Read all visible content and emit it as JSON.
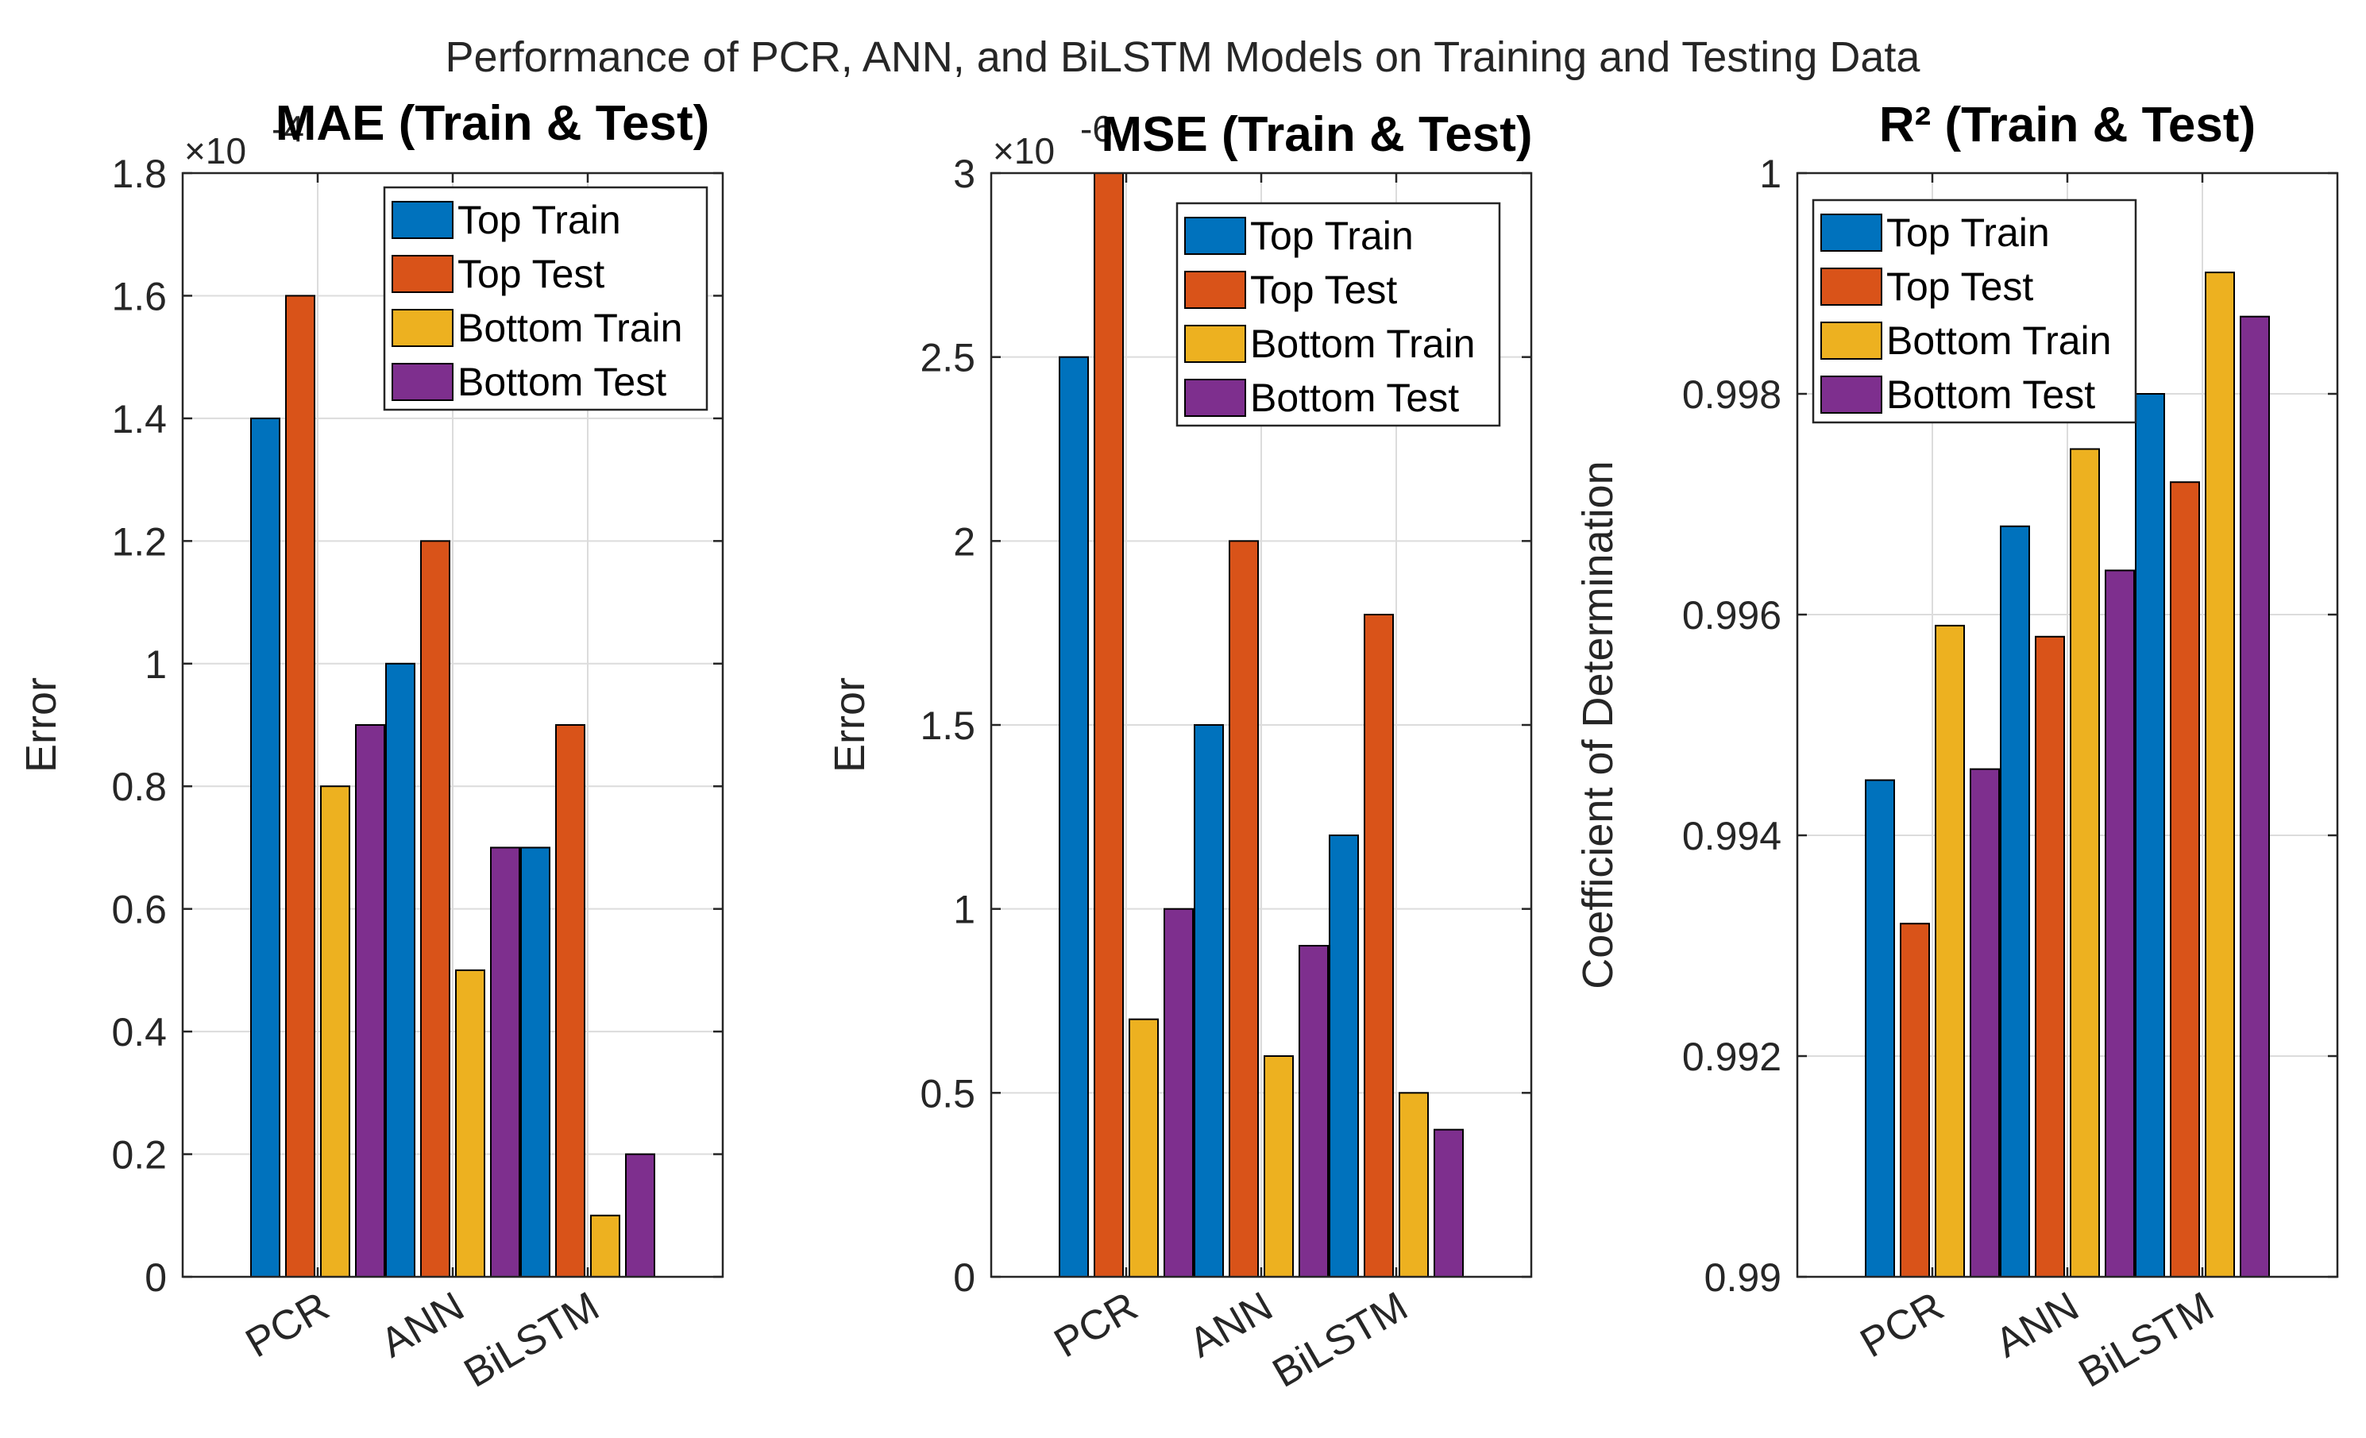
{
  "figure_title": "Performance of PCR, ANN, and BiLSTM Models on Training and Testing Data",
  "legend_labels": [
    "Top Train",
    "Top Test",
    "Bottom Train",
    "Bottom Test"
  ],
  "colors": [
    "#0072BD",
    "#D95319",
    "#EDB120",
    "#7E2F8E"
  ],
  "chart_data": [
    {
      "type": "bar",
      "title": "MAE (Train & Test)",
      "ylabel": "Error",
      "xlabel": "",
      "exponent_label": "×10",
      "exponent": "-4",
      "categories": [
        "PCR",
        "ANN",
        "BiLSTM"
      ],
      "ylim": [
        0,
        1.8
      ],
      "yticks": [
        0,
        0.2,
        0.4,
        0.6,
        0.8,
        1,
        1.2,
        1.4,
        1.6,
        1.8
      ],
      "ytick_labels": [
        "0",
        "0.2",
        "0.4",
        "0.6",
        "0.8",
        "1",
        "1.2",
        "1.4",
        "1.6",
        "1.8"
      ],
      "series": [
        {
          "name": "Top Train",
          "values": [
            1.4,
            1.0,
            0.7
          ]
        },
        {
          "name": "Top Test",
          "values": [
            1.6,
            1.2,
            0.9
          ]
        },
        {
          "name": "Bottom Train",
          "values": [
            0.8,
            0.5,
            0.1
          ]
        },
        {
          "name": "Bottom Test",
          "values": [
            0.9,
            0.7,
            0.2
          ]
        }
      ],
      "grid": true,
      "legend": "top-right"
    },
    {
      "type": "bar",
      "title": "MSE (Train & Test)",
      "ylabel": "Error",
      "xlabel": "",
      "exponent_label": "×10",
      "exponent": "-6",
      "categories": [
        "PCR",
        "ANN",
        "BiLSTM"
      ],
      "ylim": [
        0,
        3
      ],
      "yticks": [
        0,
        0.5,
        1,
        1.5,
        2,
        2.5,
        3
      ],
      "ytick_labels": [
        "0",
        "0.5",
        "1",
        "1.5",
        "2",
        "2.5",
        "3"
      ],
      "series": [
        {
          "name": "Top Train",
          "values": [
            2.5,
            1.5,
            1.2
          ]
        },
        {
          "name": "Top Test",
          "values": [
            3.0,
            2.0,
            1.8
          ]
        },
        {
          "name": "Bottom Train",
          "values": [
            0.7,
            0.6,
            0.5
          ]
        },
        {
          "name": "Bottom Test",
          "values": [
            1.0,
            0.9,
            0.4
          ]
        }
      ],
      "grid": true,
      "legend": "top-right"
    },
    {
      "type": "bar",
      "title": "R² (Train & Test)",
      "ylabel": "Coefficient of Determination",
      "xlabel": "",
      "exponent_label": "",
      "exponent": "",
      "categories": [
        "PCR",
        "ANN",
        "BiLSTM"
      ],
      "ylim": [
        0.99,
        1
      ],
      "yticks": [
        0.99,
        0.992,
        0.994,
        0.996,
        0.998,
        1
      ],
      "ytick_labels": [
        "0.99",
        "0.992",
        "0.994",
        "0.996",
        "0.998",
        "1"
      ],
      "series": [
        {
          "name": "Top Train",
          "values": [
            0.9945,
            0.9968,
            0.998
          ]
        },
        {
          "name": "Top Test",
          "values": [
            0.9932,
            0.9958,
            0.9972
          ]
        },
        {
          "name": "Bottom Train",
          "values": [
            0.9959,
            0.9975,
            0.9991
          ]
        },
        {
          "name": "Bottom Test",
          "values": [
            0.9946,
            0.9964,
            0.9987
          ]
        }
      ],
      "grid": true,
      "legend": "top-left"
    }
  ]
}
